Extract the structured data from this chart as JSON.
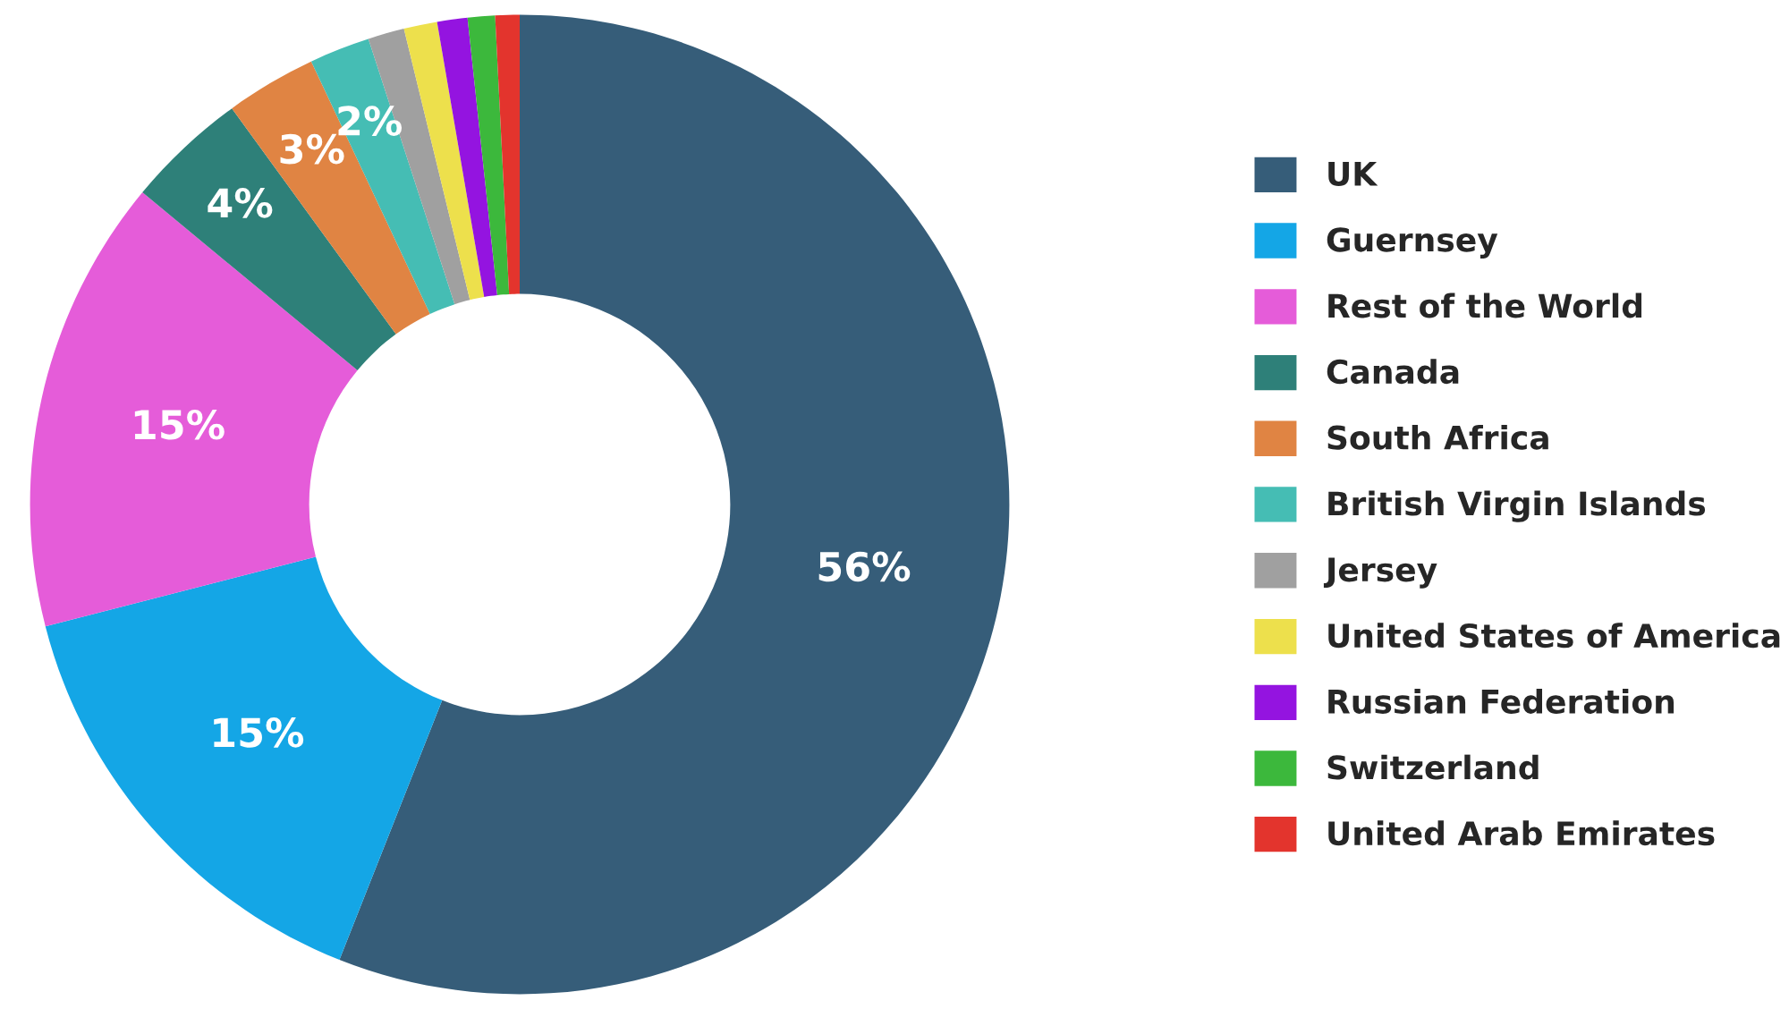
{
  "chart_data": {
    "type": "donut",
    "categories": [
      "UK",
      "Guernsey",
      "Rest of the World",
      "Canada",
      "South Africa",
      "British Virgin Islands",
      "Jersey",
      "United States of America",
      "Russian Federation",
      "Switzerland",
      "United Arab Emirates"
    ],
    "values": [
      56,
      15,
      15,
      4,
      3,
      2,
      1.2,
      1.1,
      1.0,
      0.9,
      0.8
    ],
    "value_labels": [
      "56%",
      "15%",
      "15%",
      "4%",
      "3%",
      "2%",
      null,
      null,
      null,
      null,
      null
    ],
    "colors": [
      "#365d79",
      "#14a6e6",
      "#e55cd9",
      "#2e8079",
      "#e08443",
      "#45bdb4",
      "#a0a0a0",
      "#ede04c",
      "#9414e0",
      "#3cb83c",
      "#e3342d"
    ],
    "legend": "right"
  }
}
